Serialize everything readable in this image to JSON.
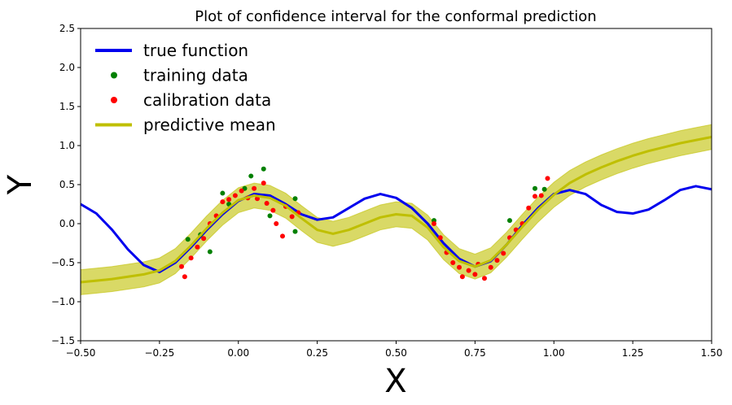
{
  "chart_data": {
    "type": "line",
    "title": "Plot of confidence interval for the conformal prediction",
    "xlabel": "X",
    "ylabel": "Y",
    "xlim": [
      -0.5,
      1.5
    ],
    "ylim": [
      -1.5,
      2.5
    ],
    "x_ticks": [
      "−0.50",
      "−0.25",
      "0.00",
      "0.25",
      "0.50",
      "0.75",
      "1.00",
      "1.25",
      "1.50"
    ],
    "x_tick_values": [
      -0.5,
      -0.25,
      0.0,
      0.25,
      0.5,
      0.75,
      1.0,
      1.25,
      1.5
    ],
    "y_ticks": [
      "−1.5",
      "−1.0",
      "−0.5",
      "0.0",
      "0.5",
      "1.0",
      "1.5",
      "2.0",
      "2.5"
    ],
    "y_tick_values": [
      -1.5,
      -1.0,
      -0.5,
      0.0,
      0.5,
      1.0,
      1.5,
      2.0,
      2.5
    ],
    "grid": false,
    "legend_position": "top-left",
    "legend": [
      {
        "label": "true function",
        "kind": "line",
        "color": "#0000ee"
      },
      {
        "label": "training data",
        "kind": "marker",
        "color": "#008000"
      },
      {
        "label": "calibration data",
        "kind": "marker",
        "color": "#ff0000"
      },
      {
        "label": "predictive mean",
        "kind": "line",
        "color": "#bfbf00"
      }
    ],
    "series": [
      {
        "name": "true function",
        "color": "#0000ee",
        "x": [
          -0.5,
          -0.45,
          -0.4,
          -0.35,
          -0.3,
          -0.25,
          -0.2,
          -0.15,
          -0.1,
          -0.05,
          0.0,
          0.05,
          0.1,
          0.15,
          0.2,
          0.25,
          0.3,
          0.35,
          0.4,
          0.45,
          0.5,
          0.55,
          0.6,
          0.65,
          0.7,
          0.75,
          0.8,
          0.85,
          0.9,
          0.95,
          1.0,
          1.05,
          1.1,
          1.15,
          1.2,
          1.25,
          1.3,
          1.35,
          1.4,
          1.45,
          1.5
        ],
        "y": [
          0.25,
          0.13,
          -0.08,
          -0.33,
          -0.53,
          -0.62,
          -0.5,
          -0.3,
          -0.08,
          0.12,
          0.29,
          0.38,
          0.36,
          0.25,
          0.12,
          0.05,
          0.08,
          0.2,
          0.32,
          0.38,
          0.33,
          0.2,
          0.0,
          -0.25,
          -0.45,
          -0.55,
          -0.48,
          -0.27,
          -0.02,
          0.2,
          0.38,
          0.43,
          0.38,
          0.24,
          0.15,
          0.13,
          0.18,
          0.3,
          0.43,
          0.48,
          0.44
        ]
      },
      {
        "name": "predictive mean",
        "color": "#bfbf00",
        "x": [
          -0.5,
          -0.45,
          -0.4,
          -0.35,
          -0.3,
          -0.25,
          -0.2,
          -0.15,
          -0.1,
          -0.05,
          0.0,
          0.05,
          0.1,
          0.15,
          0.2,
          0.25,
          0.3,
          0.35,
          0.4,
          0.45,
          0.5,
          0.55,
          0.6,
          0.65,
          0.7,
          0.75,
          0.8,
          0.85,
          0.9,
          0.95,
          1.0,
          1.05,
          1.1,
          1.15,
          1.2,
          1.25,
          1.3,
          1.35,
          1.4,
          1.45,
          1.5
        ],
        "y": [
          -0.75,
          -0.73,
          -0.71,
          -0.68,
          -0.65,
          -0.6,
          -0.48,
          -0.28,
          -0.06,
          0.14,
          0.3,
          0.36,
          0.33,
          0.23,
          0.07,
          -0.08,
          -0.13,
          -0.08,
          0.0,
          0.08,
          0.12,
          0.1,
          -0.05,
          -0.3,
          -0.48,
          -0.55,
          -0.47,
          -0.27,
          -0.04,
          0.18,
          0.37,
          0.52,
          0.63,
          0.72,
          0.8,
          0.87,
          0.93,
          0.98,
          1.03,
          1.07,
          1.11
        ]
      }
    ],
    "interval": {
      "name": "confidence interval",
      "color": "#bfbf00",
      "half_width": 0.16
    },
    "training_data": {
      "name": "training data",
      "color": "#008000",
      "x": [
        -0.16,
        -0.12,
        -0.09,
        -0.05,
        -0.03,
        0.02,
        0.04,
        0.08,
        0.1,
        0.18,
        0.18,
        0.62,
        0.86,
        0.94,
        0.97
      ],
      "y": [
        -0.2,
        -0.14,
        -0.36,
        0.39,
        0.25,
        0.45,
        0.61,
        0.7,
        0.1,
        0.32,
        -0.1,
        0.04,
        0.04,
        0.45,
        0.44
      ]
    },
    "calibration_data": {
      "name": "calibration data",
      "color": "#ff0000",
      "x": [
        -0.18,
        -0.17,
        -0.15,
        -0.13,
        -0.11,
        -0.09,
        -0.07,
        -0.05,
        -0.03,
        -0.01,
        0.01,
        0.03,
        0.05,
        0.06,
        0.08,
        0.09,
        0.11,
        0.12,
        0.14,
        0.15,
        0.17,
        0.19,
        0.62,
        0.64,
        0.66,
        0.68,
        0.7,
        0.71,
        0.73,
        0.75,
        0.76,
        0.78,
        0.8,
        0.82,
        0.84,
        0.86,
        0.88,
        0.9,
        0.92,
        0.94,
        0.96,
        0.98
      ],
      "y": [
        -0.55,
        -0.68,
        -0.44,
        -0.3,
        -0.19,
        0.0,
        0.1,
        0.28,
        0.31,
        0.36,
        0.42,
        0.33,
        0.45,
        0.32,
        0.52,
        0.26,
        0.17,
        0.0,
        -0.16,
        0.22,
        0.09,
        0.14,
        0.0,
        -0.18,
        -0.37,
        -0.5,
        -0.56,
        -0.68,
        -0.6,
        -0.65,
        -0.52,
        -0.7,
        -0.56,
        -0.47,
        -0.38,
        -0.18,
        -0.08,
        0.0,
        0.2,
        0.35,
        0.36,
        0.58
      ]
    }
  }
}
